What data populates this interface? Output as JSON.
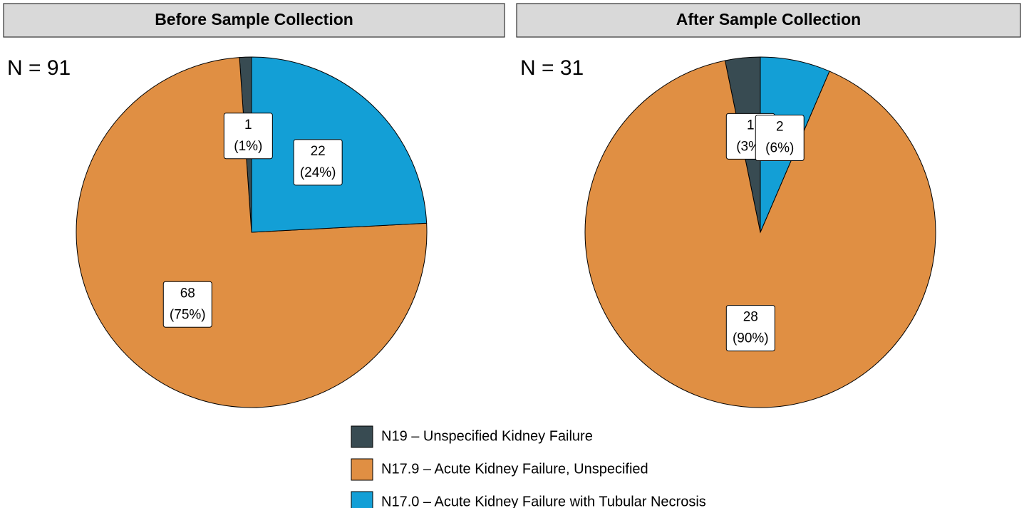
{
  "chart_data": {
    "type": "pie",
    "categories": [
      "N19 – Unspecified Kidney Failure",
      "N17.9 – Acute Kidney Failure, Unspecified",
      "N17.0 – Acute Kidney Failure with Tubular Necrosis"
    ],
    "colors": [
      "#384b52",
      "#e08f43",
      "#139fd6"
    ],
    "legend": "bottom",
    "panels": [
      {
        "title": "Before Sample Collection",
        "annotation": "N = 91",
        "values": [
          1,
          68,
          22
        ],
        "percent_labels": [
          "(1%)",
          "(75%)",
          "(24%)"
        ]
      },
      {
        "title": "After Sample Collection",
        "annotation": "N = 31",
        "values": [
          1,
          28,
          2
        ],
        "percent_labels": [
          "(3%)",
          "(90%)",
          "(6%)"
        ]
      }
    ]
  }
}
